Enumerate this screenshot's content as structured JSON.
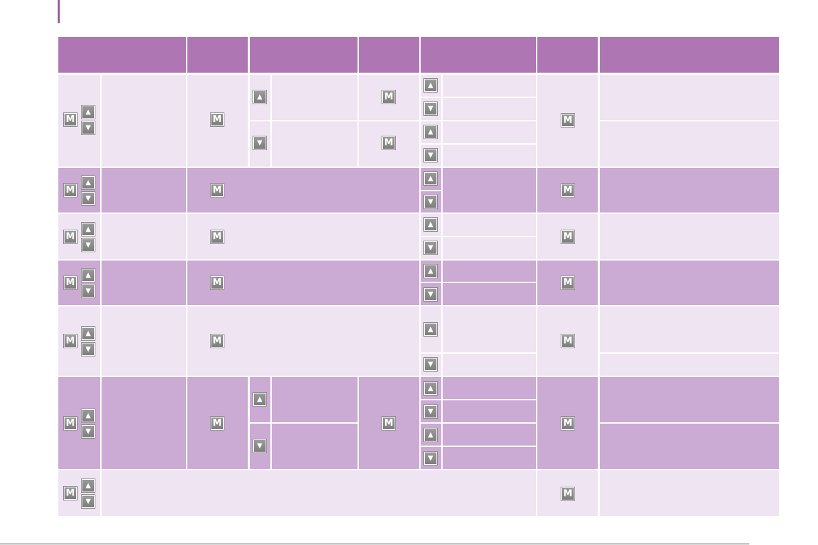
{
  "page": {
    "header_color": "#ae77b4",
    "light_row_color": "#efe4f1",
    "dark_row_color": "#cbaad3",
    "key_color": "#8a8a8a"
  },
  "keys": {
    "menu": {
      "label": "M",
      "icon": "menu-key-icon"
    },
    "up": {
      "label": "▲",
      "icon": "arrow-up-icon"
    },
    "down": {
      "label": "▼",
      "icon": "arrow-down-icon"
    }
  }
}
